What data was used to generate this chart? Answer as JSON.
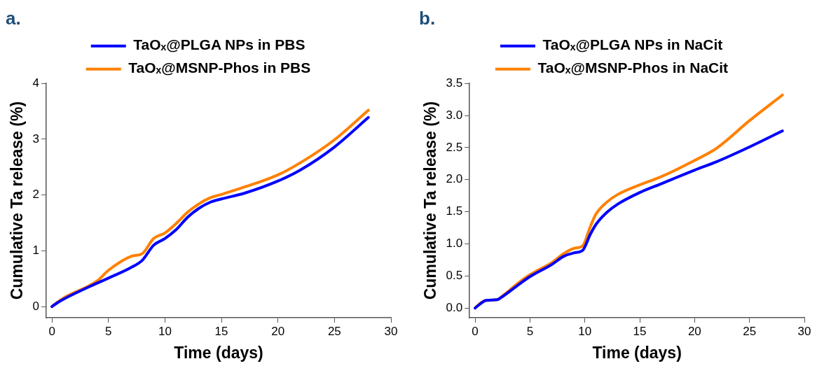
{
  "chart_data": [
    {
      "type": "line",
      "title": "a.",
      "xlabel": "Time (days)",
      "ylabel": "Cumulative Ta release (%)",
      "xlim": [
        -0.5,
        30
      ],
      "xticks": [
        0,
        5,
        10,
        15,
        20,
        25,
        30
      ],
      "ylim": [
        -0.2,
        4
      ],
      "yticks": [
        0,
        1,
        2,
        3,
        4
      ],
      "grid": false,
      "legend": "top",
      "marker": "none",
      "line_style": "solid",
      "series": [
        {
          "name": "TaOₓ@PLGA NPs in PBS",
          "color": "#0000ff",
          "x": [
            0,
            0.5,
            1,
            4,
            5,
            7,
            8,
            9,
            10,
            11,
            12,
            13,
            14,
            15,
            17,
            20,
            22,
            25,
            28
          ],
          "values": [
            0,
            0.07,
            0.13,
            0.42,
            0.51,
            0.7,
            0.83,
            1.1,
            1.22,
            1.38,
            1.6,
            1.76,
            1.87,
            1.93,
            2.03,
            2.25,
            2.45,
            2.86,
            3.39
          ]
        },
        {
          "name": "TaOₓ@MSNP-Phos in PBS",
          "color": "#ff8000",
          "x": [
            0,
            0.5,
            1,
            4,
            5,
            7,
            8,
            9,
            10,
            11,
            12,
            13,
            14,
            15,
            17,
            20,
            22,
            25,
            28
          ],
          "values": [
            0,
            0.08,
            0.15,
            0.46,
            0.65,
            0.9,
            0.95,
            1.22,
            1.32,
            1.49,
            1.69,
            1.84,
            1.95,
            2.01,
            2.14,
            2.36,
            2.58,
            2.99,
            3.52
          ]
        }
      ]
    },
    {
      "type": "line",
      "title": "b.",
      "xlabel": "Time (days)",
      "ylabel": "Cumulative Ta release (%)",
      "xlim": [
        -0.5,
        30
      ],
      "xticks": [
        0,
        5,
        10,
        15,
        20,
        25,
        30
      ],
      "ylim": [
        -0.15,
        3.5
      ],
      "yticks": [
        {
          "value": 0,
          "label": "0.0"
        },
        0.5,
        {
          "value": 1,
          "label": "1.0"
        },
        1.5,
        {
          "value": 2,
          "label": "2.0"
        },
        2.5,
        {
          "value": 3,
          "label": "3.0"
        },
        3.5
      ],
      "grid": false,
      "legend": "top",
      "marker": "none",
      "line_style": "solid",
      "series": [
        {
          "name": "TaOₓ@PLGA NPs in NaCit",
          "color": "#0000ff",
          "x": [
            0,
            0.5,
            1,
            2,
            2.5,
            4,
            5,
            7,
            8,
            9,
            9.8,
            10.5,
            11,
            12,
            13,
            15,
            17,
            20,
            22,
            25,
            28
          ],
          "values": [
            0,
            0.07,
            0.12,
            0.13,
            0.18,
            0.37,
            0.49,
            0.68,
            0.8,
            0.86,
            0.9,
            1.15,
            1.3,
            1.49,
            1.62,
            1.8,
            1.94,
            2.15,
            2.28,
            2.51,
            2.76
          ]
        },
        {
          "name": "TaOₓ@MSNP-Phos in NaCit",
          "color": "#ff8000",
          "x": [
            0,
            0.5,
            1,
            2,
            2.5,
            4,
            5,
            7,
            8,
            9,
            9.8,
            10.5,
            11,
            12,
            13,
            15,
            17,
            20,
            22,
            25,
            28
          ],
          "values": [
            0,
            0.08,
            0.12,
            0.13,
            0.19,
            0.4,
            0.52,
            0.71,
            0.84,
            0.93,
            0.97,
            1.27,
            1.46,
            1.65,
            1.77,
            1.92,
            2.05,
            2.3,
            2.49,
            2.92,
            3.32
          ]
        }
      ]
    }
  ]
}
